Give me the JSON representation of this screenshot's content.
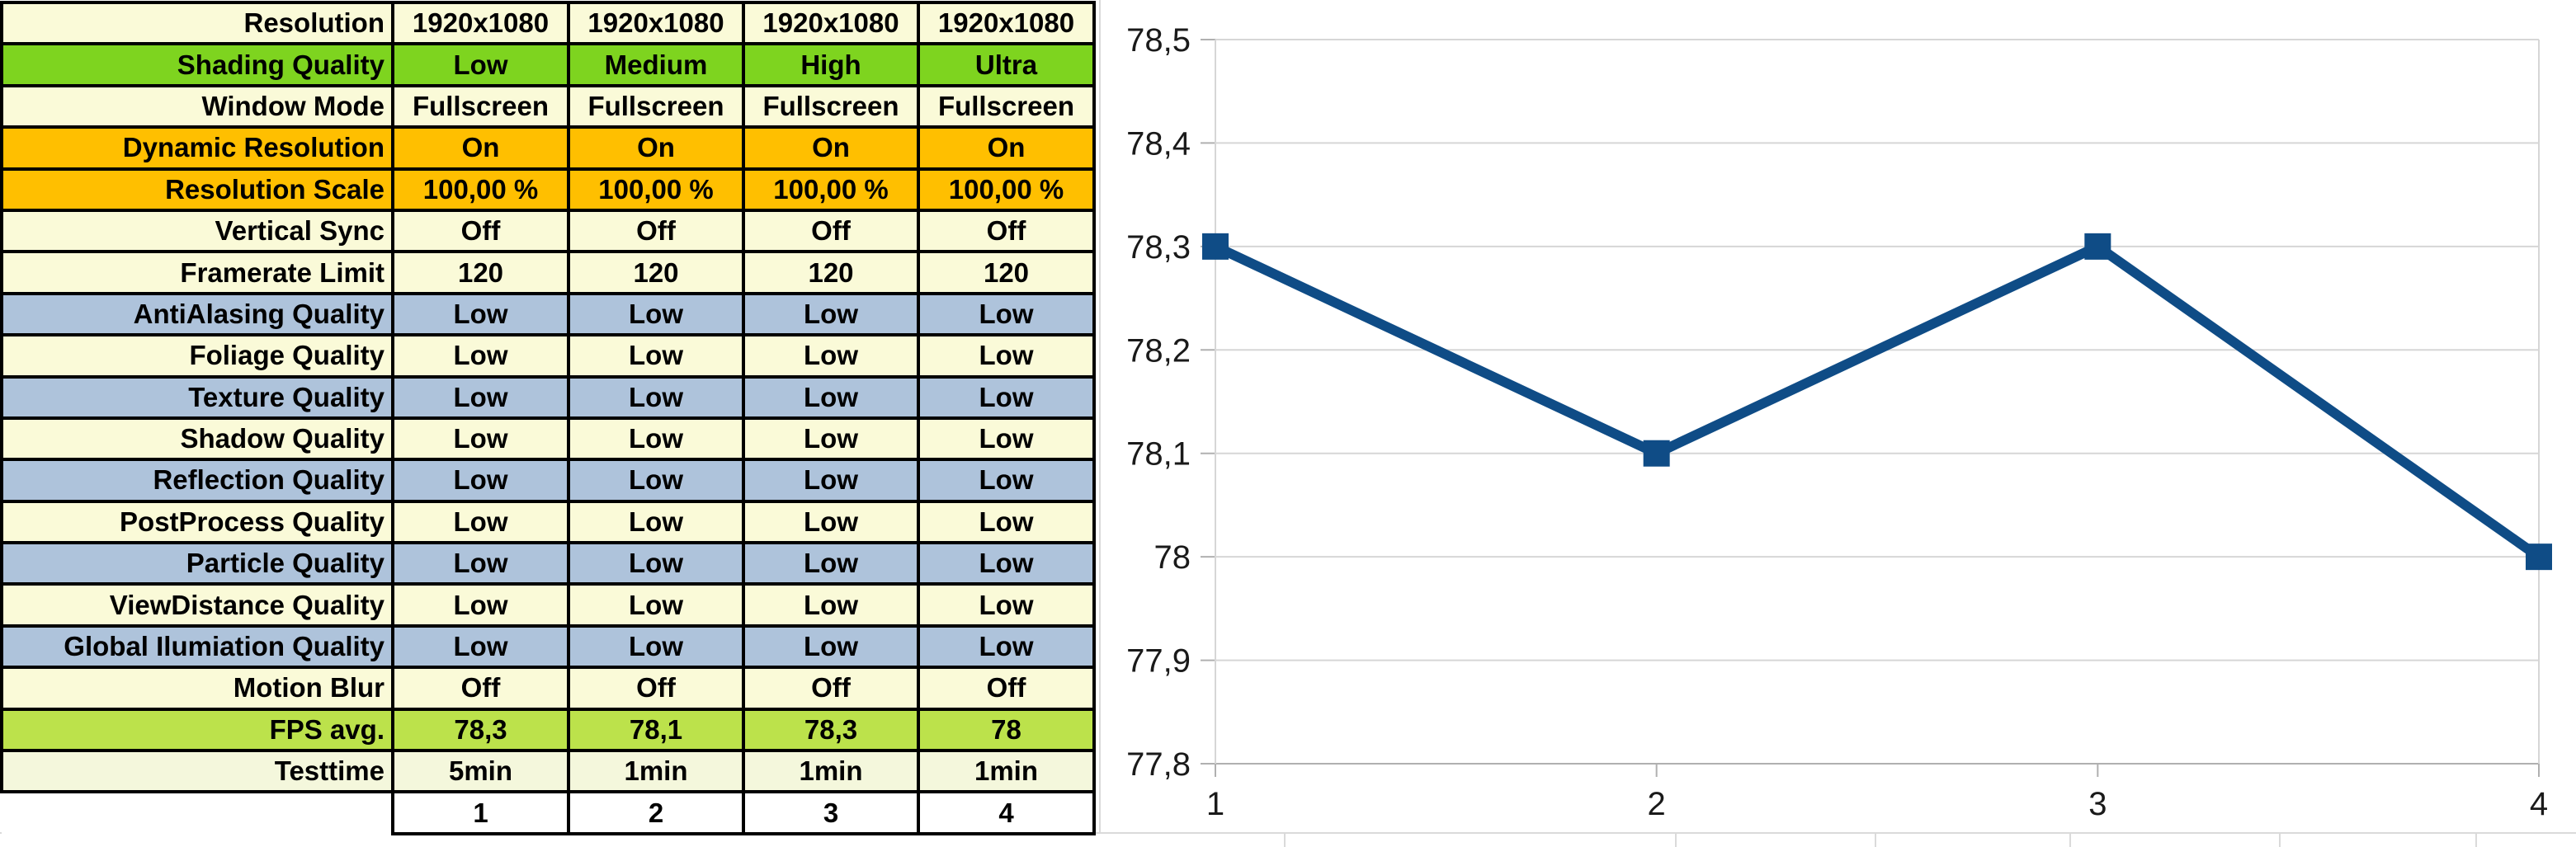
{
  "table": {
    "rows": [
      {
        "label": "Resolution",
        "values": [
          "1920x1080",
          "1920x1080",
          "1920x1080",
          "1920x1080"
        ],
        "style": "row_cream"
      },
      {
        "label": "Shading Quality",
        "values": [
          "Low",
          "Medium",
          "High",
          "Ultra"
        ],
        "style": "row_green"
      },
      {
        "label": "Window Mode",
        "values": [
          "Fullscreen",
          "Fullscreen",
          "Fullscreen",
          "Fullscreen"
        ],
        "style": "row_cream"
      },
      {
        "label": "Dynamic Resolution",
        "values": [
          "On",
          "On",
          "On",
          "On"
        ],
        "style": "row_orange"
      },
      {
        "label": "Resolution Scale",
        "values": [
          "100,00 %",
          "100,00 %",
          "100,00 %",
          "100,00 %"
        ],
        "style": "row_orange"
      },
      {
        "label": "Vertical Sync",
        "values": [
          "Off",
          "Off",
          "Off",
          "Off"
        ],
        "style": "row_cream"
      },
      {
        "label": "Framerate Limit",
        "values": [
          "120",
          "120",
          "120",
          "120"
        ],
        "style": "row_cream"
      },
      {
        "label": "AntiAlasing Quality",
        "values": [
          "Low",
          "Low",
          "Low",
          "Low"
        ],
        "style": "row_blue"
      },
      {
        "label": "Foliage Quality",
        "values": [
          "Low",
          "Low",
          "Low",
          "Low"
        ],
        "style": "row_cream"
      },
      {
        "label": "Texture Quality",
        "values": [
          "Low",
          "Low",
          "Low",
          "Low"
        ],
        "style": "row_blue"
      },
      {
        "label": "Shadow Quality",
        "values": [
          "Low",
          "Low",
          "Low",
          "Low"
        ],
        "style": "row_cream"
      },
      {
        "label": "Reflection Quality",
        "values": [
          "Low",
          "Low",
          "Low",
          "Low"
        ],
        "style": "row_blue"
      },
      {
        "label": "PostProcess Quality",
        "values": [
          "Low",
          "Low",
          "Low",
          "Low"
        ],
        "style": "row_cream"
      },
      {
        "label": "Particle Quality",
        "values": [
          "Low",
          "Low",
          "Low",
          "Low"
        ],
        "style": "row_blue"
      },
      {
        "label": "ViewDistance Quality",
        "values": [
          "Low",
          "Low",
          "Low",
          "Low"
        ],
        "style": "row_cream"
      },
      {
        "label": "Global Ilumiation Quality",
        "values": [
          "Low",
          "Low",
          "Low",
          "Low"
        ],
        "style": "row_blue"
      },
      {
        "label": "Motion Blur",
        "values": [
          "Off",
          "Off",
          "Off",
          "Off"
        ],
        "style": "row_cream"
      },
      {
        "label": "FPS avg.",
        "values": [
          "78,3",
          "78,1",
          "78,3",
          "78"
        ],
        "style": "row_fps_green"
      },
      {
        "label": "Testtime",
        "values": [
          "5min",
          "1min",
          "1min",
          "1min"
        ],
        "style": "row_cream_muted"
      },
      {
        "label": "",
        "values": [
          "1",
          "2",
          "3",
          "4"
        ],
        "style": "row_footer"
      }
    ]
  },
  "chart_data": {
    "type": "line",
    "x": [
      1,
      2,
      3,
      4
    ],
    "values": [
      78.3,
      78.1,
      78.3,
      78.0
    ],
    "x_tick_labels": [
      "1",
      "2",
      "3",
      "4"
    ],
    "y_ticks": [
      {
        "label": "78,5",
        "value": 78.5
      },
      {
        "label": "78,4",
        "value": 78.4
      },
      {
        "label": "78,3",
        "value": 78.3
      },
      {
        "label": "78,2",
        "value": 78.2
      },
      {
        "label": "78,1",
        "value": 78.1
      },
      {
        "label": "78",
        "value": 78.0
      },
      {
        "label": "77,9",
        "value": 77.9
      },
      {
        "label": "77,8",
        "value": 77.8
      }
    ],
    "ylim": [
      77.8,
      78.5
    ],
    "title": "",
    "xlabel": "",
    "ylabel": "",
    "legend": "none",
    "grid": "horizontal",
    "marker": "square"
  },
  "colors": {
    "row_cream": "#fafad8",
    "row_cream_muted": "#f4f7dc",
    "row_green": "#7ed41f",
    "row_orange": "#ffbf00",
    "row_blue": "#aec3db",
    "row_fps_green": "#bce24b",
    "row_footer": "#ffffff",
    "table_border": "#000000",
    "chart_line": "#0f4c86",
    "chart_grid": "#d6d6d6",
    "chart_axis": "#b0b0b0",
    "sheet_gridline": "#dadada",
    "text": "#000000"
  }
}
